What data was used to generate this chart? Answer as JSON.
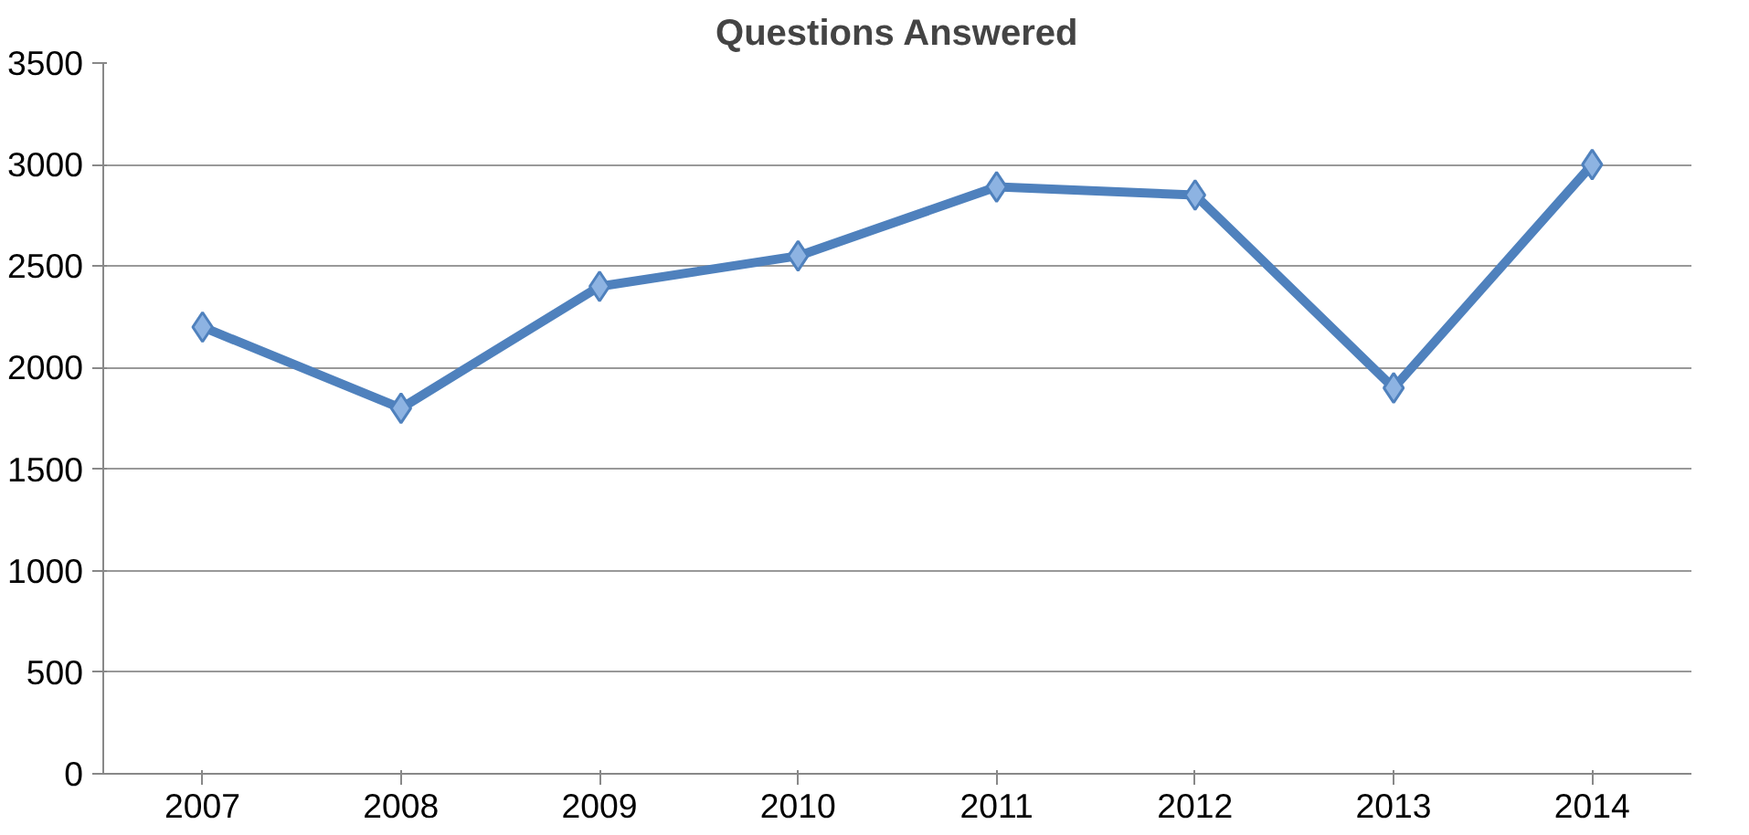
{
  "chart_data": {
    "type": "line",
    "title": "Questions Answered",
    "categories": [
      "2007",
      "2008",
      "2009",
      "2010",
      "2011",
      "2012",
      "2013",
      "2014"
    ],
    "series": [
      {
        "color": "#4f81bd",
        "values": [
          2200,
          1800,
          2400,
          2550,
          2890,
          2850,
          1900,
          3000
        ]
      }
    ],
    "ylim": [
      0,
      3500
    ],
    "yticks": [
      0,
      500,
      1000,
      1500,
      2000,
      2500,
      3000,
      3500
    ],
    "grid": "y",
    "marker": "diamond",
    "line_style": "solid"
  }
}
